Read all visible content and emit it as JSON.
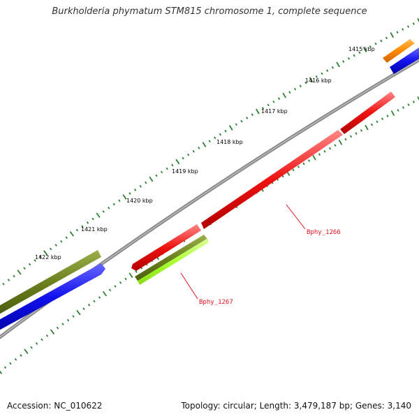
{
  "title": "Burkholderia phymatum STM815 chromosome 1, complete sequence",
  "ruler_ticks": [
    "1415 kbp",
    "1416 kbp",
    "1417 kbp",
    "1418 kbp",
    "1419 kbp",
    "1420 kbp",
    "1421 kbp",
    "1422 kbp"
  ],
  "genes": [
    {
      "name": "Bphy_1266",
      "color": "#ee1111",
      "label_visible": true
    },
    {
      "name": "Bphy_1267",
      "color": "#78891f",
      "label_visible": true
    }
  ],
  "colors": {
    "backbone": "#888888",
    "ticks": "#2e7d32",
    "red": "#ee1111",
    "olive": "#6b7f1e",
    "lime": "#aaff33",
    "blue": "#1111ee",
    "orange": "#ff8800"
  },
  "footer": {
    "accession": "Accession: NC_010622",
    "stats": "Topology: circular; Length: 3,479,187 bp; Genes: 3,140"
  }
}
